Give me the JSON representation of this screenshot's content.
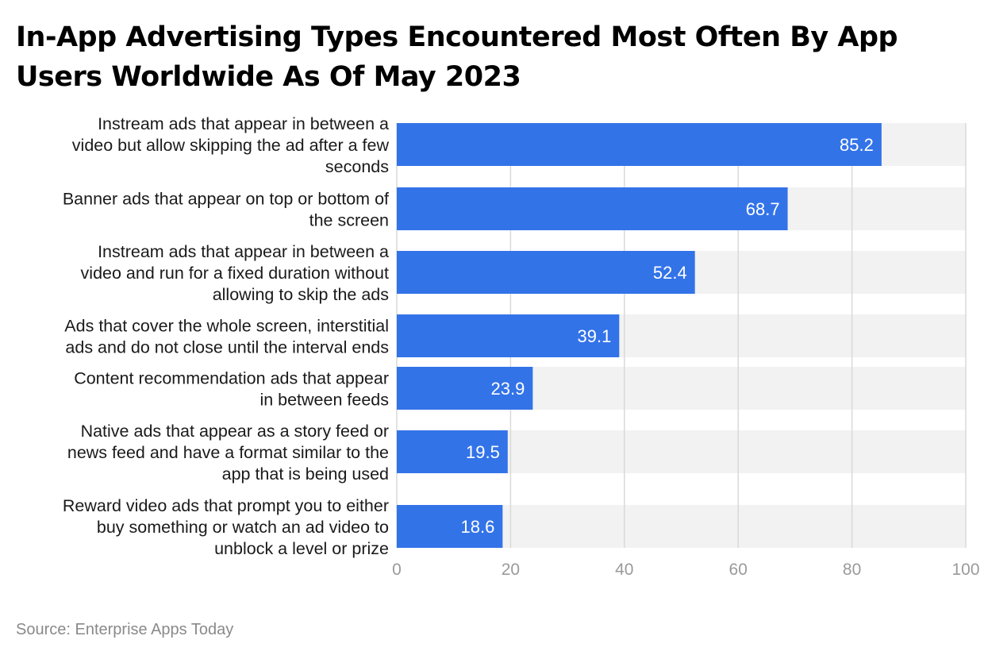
{
  "chart_data": {
    "type": "bar",
    "orientation": "horizontal",
    "title": "In-App Advertising Types Encountered Most Often By App Users Worldwide As Of May 2023",
    "categories": [
      [
        "Instream ads that appear in between a",
        "video but allow skipping the ad after a few",
        "seconds"
      ],
      [
        "Banner ads that appear on top or bottom of",
        "the screen"
      ],
      [
        "Instream ads that appear in between a",
        "video and run for a fixed duration without",
        "allowing to skip the ads"
      ],
      [
        "Ads that cover the whole screen, interstitial",
        "ads and do not close until the interval ends"
      ],
      [
        "Content recommendation ads that appear",
        "in between feeds"
      ],
      [
        "Native ads that appear as a story feed or",
        "news feed and have a format similar to the",
        "app that is being used"
      ],
      [
        "Reward video ads that prompt you to either",
        "buy something or watch an ad video to",
        "unblock a level or prize"
      ]
    ],
    "values": [
      85.2,
      68.7,
      52.4,
      39.1,
      23.9,
      19.5,
      18.6
    ],
    "value_labels": [
      "85.2",
      "68.7",
      "52.4",
      "39.1",
      "23.9",
      "19.5",
      "18.6"
    ],
    "xlim": [
      0,
      100
    ],
    "xticks": [
      0,
      20,
      40,
      60,
      80,
      100
    ],
    "xtick_labels": [
      "0",
      "20",
      "40",
      "60",
      "80",
      "100"
    ],
    "xlabel": "",
    "ylabel": "",
    "grid": true,
    "legend": "none",
    "bar_color": "#3373e8",
    "track_color": "#f2f2f2",
    "gridline_color": "#d9d9d9"
  },
  "source": "Source: Enterprise Apps Today"
}
